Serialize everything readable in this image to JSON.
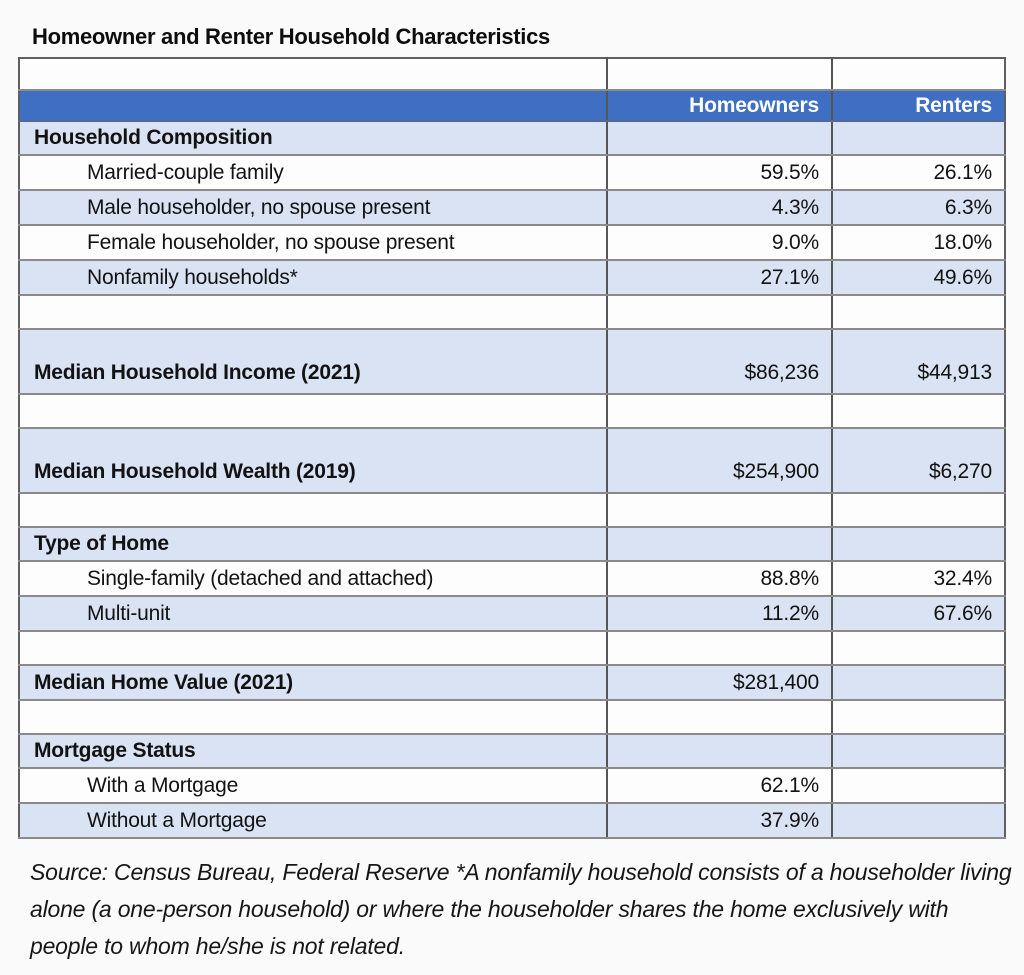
{
  "page": {
    "title": "Homeowner and Renter Household Characteristics"
  },
  "colors": {
    "header_blue": "#3e6fc2",
    "row_light_blue": "#dae3f3",
    "grid_gray": "#8a8a8a",
    "header_text": "#ffffff"
  },
  "table": {
    "columns": {
      "homeowners": "Homeowners",
      "renters": "Renters"
    },
    "rows": [
      {
        "kind": "section",
        "label": "Household Composition",
        "homeowners": "",
        "renters": ""
      },
      {
        "kind": "item",
        "label": "Married-couple family",
        "homeowners": "59.5%",
        "renters": "26.1%"
      },
      {
        "kind": "item",
        "label": "Male householder, no spouse present",
        "homeowners": "4.3%",
        "renters": "6.3%"
      },
      {
        "kind": "item",
        "label": "Female householder, no spouse present",
        "homeowners": "9.0%",
        "renters": "18.0%"
      },
      {
        "kind": "item",
        "label": "Nonfamily households*",
        "homeowners": "27.1%",
        "renters": "49.6%"
      },
      {
        "kind": "blank",
        "label": "",
        "homeowners": "",
        "renters": ""
      },
      {
        "kind": "metric",
        "label": "Median Household Income (2021)",
        "homeowners": "$86,236",
        "renters": "$44,913"
      },
      {
        "kind": "blank",
        "label": "",
        "homeowners": "",
        "renters": ""
      },
      {
        "kind": "metric",
        "label": "Median Household Wealth (2019)",
        "homeowners": "$254,900",
        "renters": "$6,270"
      },
      {
        "kind": "blank",
        "label": "",
        "homeowners": "",
        "renters": ""
      },
      {
        "kind": "section",
        "label": "Type of Home",
        "homeowners": "",
        "renters": ""
      },
      {
        "kind": "item",
        "label": "Single-family (detached and attached)",
        "homeowners": "88.8%",
        "renters": "32.4%"
      },
      {
        "kind": "item",
        "label": "Multi-unit",
        "homeowners": "11.2%",
        "renters": "67.6%"
      },
      {
        "kind": "blank",
        "label": "",
        "homeowners": "",
        "renters": ""
      },
      {
        "kind": "metric",
        "label": "Median Home Value (2021)",
        "homeowners": "$281,400",
        "renters": ""
      },
      {
        "kind": "blank",
        "label": "",
        "homeowners": "",
        "renters": ""
      },
      {
        "kind": "section",
        "label": "Mortgage Status",
        "homeowners": "",
        "renters": ""
      },
      {
        "kind": "item",
        "label": "With a Mortgage",
        "homeowners": "62.1%",
        "renters": ""
      },
      {
        "kind": "item",
        "label": "Without a Mortgage",
        "homeowners": "37.9%",
        "renters": ""
      }
    ]
  },
  "footnote": "Source: Census Bureau, Federal Reserve *A nonfamily household consists of a householder living alone (a one-person household) or where the householder shares the home exclusively with people to whom he/she is not related.",
  "chart_data": {
    "type": "table",
    "title": "Homeowner and Renter Household Characteristics",
    "columns": [
      "Homeowners",
      "Renters"
    ],
    "rows": [
      {
        "group": "Household Composition",
        "label": "Married-couple family",
        "homeowners": 59.5,
        "renters": 26.1,
        "unit": "%"
      },
      {
        "group": "Household Composition",
        "label": "Male householder, no spouse present",
        "homeowners": 4.3,
        "renters": 6.3,
        "unit": "%"
      },
      {
        "group": "Household Composition",
        "label": "Female householder, no spouse present",
        "homeowners": 9.0,
        "renters": 18.0,
        "unit": "%"
      },
      {
        "group": "Household Composition",
        "label": "Nonfamily households*",
        "homeowners": 27.1,
        "renters": 49.6,
        "unit": "%"
      },
      {
        "group": null,
        "label": "Median Household Income (2021)",
        "homeowners": 86236,
        "renters": 44913,
        "unit": "$"
      },
      {
        "group": null,
        "label": "Median Household Wealth (2019)",
        "homeowners": 254900,
        "renters": 6270,
        "unit": "$"
      },
      {
        "group": "Type of Home",
        "label": "Single-family (detached and attached)",
        "homeowners": 88.8,
        "renters": 32.4,
        "unit": "%"
      },
      {
        "group": "Type of Home",
        "label": "Multi-unit",
        "homeowners": 11.2,
        "renters": 67.6,
        "unit": "%"
      },
      {
        "group": null,
        "label": "Median Home Value (2021)",
        "homeowners": 281400,
        "renters": null,
        "unit": "$"
      },
      {
        "group": "Mortgage Status",
        "label": "With a Mortgage",
        "homeowners": 62.1,
        "renters": null,
        "unit": "%"
      },
      {
        "group": "Mortgage Status",
        "label": "Without a Mortgage",
        "homeowners": 37.9,
        "renters": null,
        "unit": "%"
      }
    ],
    "source_note": "Source: Census Bureau, Federal Reserve *A nonfamily household consists of a householder living alone (a one-person household) or where the householder shares the home exclusively with people to whom he/she is not related."
  }
}
